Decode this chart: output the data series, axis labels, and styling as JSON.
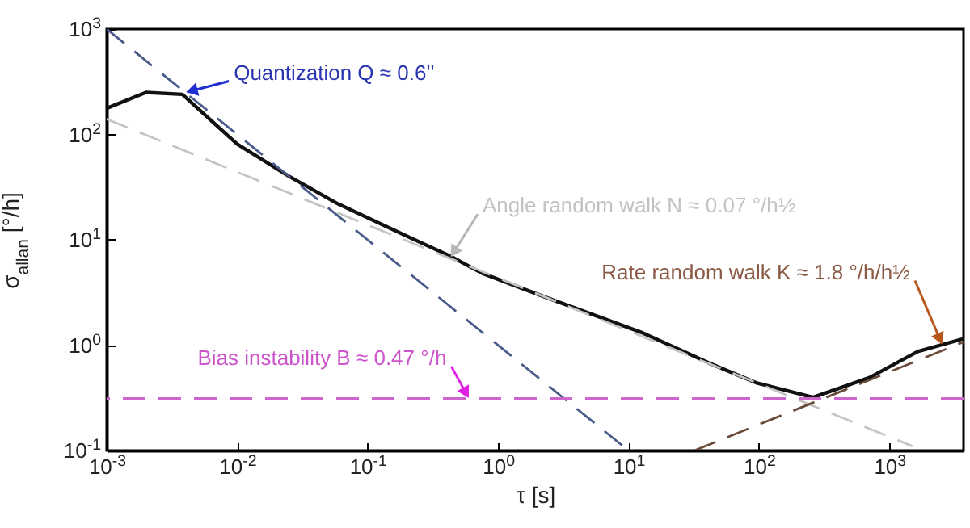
{
  "chart_data": {
    "type": "line",
    "xlabel": "τ [s]",
    "ylabel": "σ$_{allan}$ [°/h]",
    "log": "xy",
    "grid": false,
    "xlim": [
      0.001,
      3700
    ],
    "ylim": [
      0.1,
      1000
    ],
    "xticks": [
      {
        "value": 0.001,
        "label": "10$^{-3}$"
      },
      {
        "value": 0.01,
        "label": "10$^{-2}$"
      },
      {
        "value": 0.1,
        "label": "10$^{-1}$"
      },
      {
        "value": 1,
        "label": "10$^{0}$"
      },
      {
        "value": 10,
        "label": "10$^{1}$"
      },
      {
        "value": 100,
        "label": "10$^{2}$"
      },
      {
        "value": 1000,
        "label": "10$^{3}$"
      }
    ],
    "yticks": [
      {
        "value": 0.1,
        "label": "10$^{-1}$"
      },
      {
        "value": 1,
        "label": "10$^{0}$"
      },
      {
        "value": 10,
        "label": "10$^{1}$"
      },
      {
        "value": 100,
        "label": "10$^{2}$"
      },
      {
        "value": 1000,
        "label": "10$^{3}$"
      }
    ],
    "series": [
      {
        "color": "#111111",
        "line_style": "solid",
        "x": [
          0.001,
          0.002,
          0.0038,
          0.01,
          0.025,
          0.059,
          0.18,
          0.43,
          0.76,
          2.4,
          13,
          41,
          95,
          260,
          700,
          1650,
          3700
        ],
        "values": [
          177,
          250,
          240,
          81,
          40,
          22,
          11.5,
          7,
          4.8,
          2.8,
          1.3,
          0.68,
          0.44,
          0.32,
          0.49,
          0.87,
          1.15
        ]
      },
      {
        "color": "#4a5a8a",
        "line_style": "dashed",
        "x": [
          0.001,
          10
        ],
        "values": [
          1000,
          0.1
        ]
      },
      {
        "color": "#c4c4c4",
        "line_style": "dashed",
        "x": [
          0.001,
          1500
        ],
        "values": [
          140,
          0.11
        ]
      },
      {
        "color": "#6a4a3a",
        "line_style": "dashed",
        "x": [
          32,
          3700
        ],
        "values": [
          0.1,
          1.07
        ]
      }
    ],
    "ref_lines": [
      {
        "axis": "y",
        "value": 0.31,
        "color": "#cc66cc",
        "line_style": "dashed"
      }
    ],
    "annotations": [
      {
        "text": "Quantization Q ≈ 0.6''",
        "x": 0.004,
        "y": 250
      },
      {
        "text": "Angle random walk N ≈ 0.07 °/h½",
        "x": 0.43,
        "y": 6.75
      },
      {
        "text": "Rate random walk K ≈ 1.8 °/h/h½",
        "x": 2550,
        "y": 1.0
      },
      {
        "text": "Bias instability B ≈ 0.47 °/h",
        "x": 0.6,
        "y": 0.31
      }
    ]
  }
}
